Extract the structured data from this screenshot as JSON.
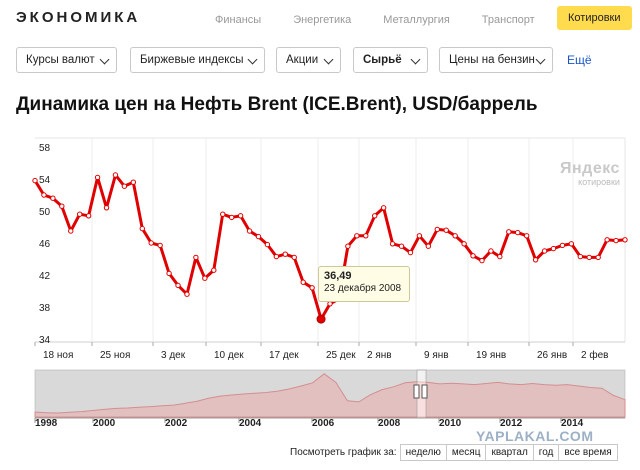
{
  "header": {
    "logo": "ЭКОНОМИКА",
    "nav": [
      "Финансы",
      "Энергетика",
      "Металлургия",
      "Транспорт"
    ],
    "active_tab": "Котировки"
  },
  "filters": {
    "items": [
      "Курсы валют",
      "Биржевые индексы",
      "Акции",
      "Сырьё",
      "Цены на бензин"
    ],
    "selected": "Сырьё",
    "more": "Ещё"
  },
  "title": "Динамика цен на Нефть Brent (ICE.Brent), USD/баррель",
  "watermark": {
    "brand": "Яндекс",
    "caption": "котировки"
  },
  "tooltip": {
    "value": "36,49",
    "date": "23 декабря 2008"
  },
  "navigator": {
    "years": [
      "1998",
      "2000",
      "2002",
      "2004",
      "2006",
      "2008",
      "2010",
      "2012",
      "2014"
    ]
  },
  "period_selector": {
    "label": "Посмотреть график за:",
    "options": [
      "неделю",
      "месяц",
      "квартал",
      "год",
      "все время"
    ]
  },
  "site_watermark": "YAPLAKAL.COM",
  "colors": {
    "line": "#e00000",
    "accent": "#ffdb4d",
    "link": "#1a55c8"
  },
  "chart_data": {
    "type": "line",
    "yticks": [
      "58",
      "54",
      "50",
      "46",
      "42",
      "38",
      "34"
    ],
    "ylim": [
      34,
      58
    ],
    "x_tick_labels": [
      "18 ноя",
      "25 ноя",
      "3 дек",
      "10 дек",
      "17 дек",
      "25 дек",
      "2 янв",
      "9 янв",
      "19 янв",
      "26 янв",
      "2 фев"
    ],
    "grid": "vertical",
    "highlight": {
      "value": 36.49,
      "label": "23 декабря 2008"
    },
    "values": [
      53.8,
      52.0,
      51.6,
      50.6,
      47.5,
      49.6,
      49.4,
      54.2,
      50.4,
      54.5,
      53.1,
      53.6,
      47.8,
      46.0,
      45.7,
      42.2,
      40.7,
      39.6,
      44.2,
      41.6,
      42.6,
      49.6,
      49.2,
      49.4,
      47.5,
      46.8,
      45.8,
      44.3,
      44.6,
      44.2,
      41.1,
      40.4,
      36.49,
      38.4,
      39.0,
      45.6,
      46.9,
      46.9,
      49.4,
      50.4,
      45.9,
      45.6,
      44.8,
      46.9,
      45.6,
      47.7,
      47.6,
      46.9,
      45.9,
      44.4,
      43.8,
      45.0,
      44.3,
      47.4,
      47.3,
      46.9,
      43.9,
      45.0,
      45.3,
      45.7,
      45.9,
      44.3,
      44.2,
      44.2,
      46.4,
      46.3,
      46.4
    ]
  },
  "navigator_data": {
    "type": "area",
    "values": [
      14,
      12,
      11,
      13,
      15,
      18,
      21,
      24,
      25,
      27,
      29,
      31,
      33,
      38,
      44,
      52,
      58,
      61,
      64,
      66,
      68,
      72,
      78,
      86,
      95,
      120,
      96,
      45,
      42,
      62,
      76,
      84,
      95,
      98,
      96,
      92,
      94,
      92,
      90,
      93,
      96,
      92,
      90,
      93,
      90,
      88,
      90,
      86,
      82,
      80,
      60,
      48
    ]
  }
}
